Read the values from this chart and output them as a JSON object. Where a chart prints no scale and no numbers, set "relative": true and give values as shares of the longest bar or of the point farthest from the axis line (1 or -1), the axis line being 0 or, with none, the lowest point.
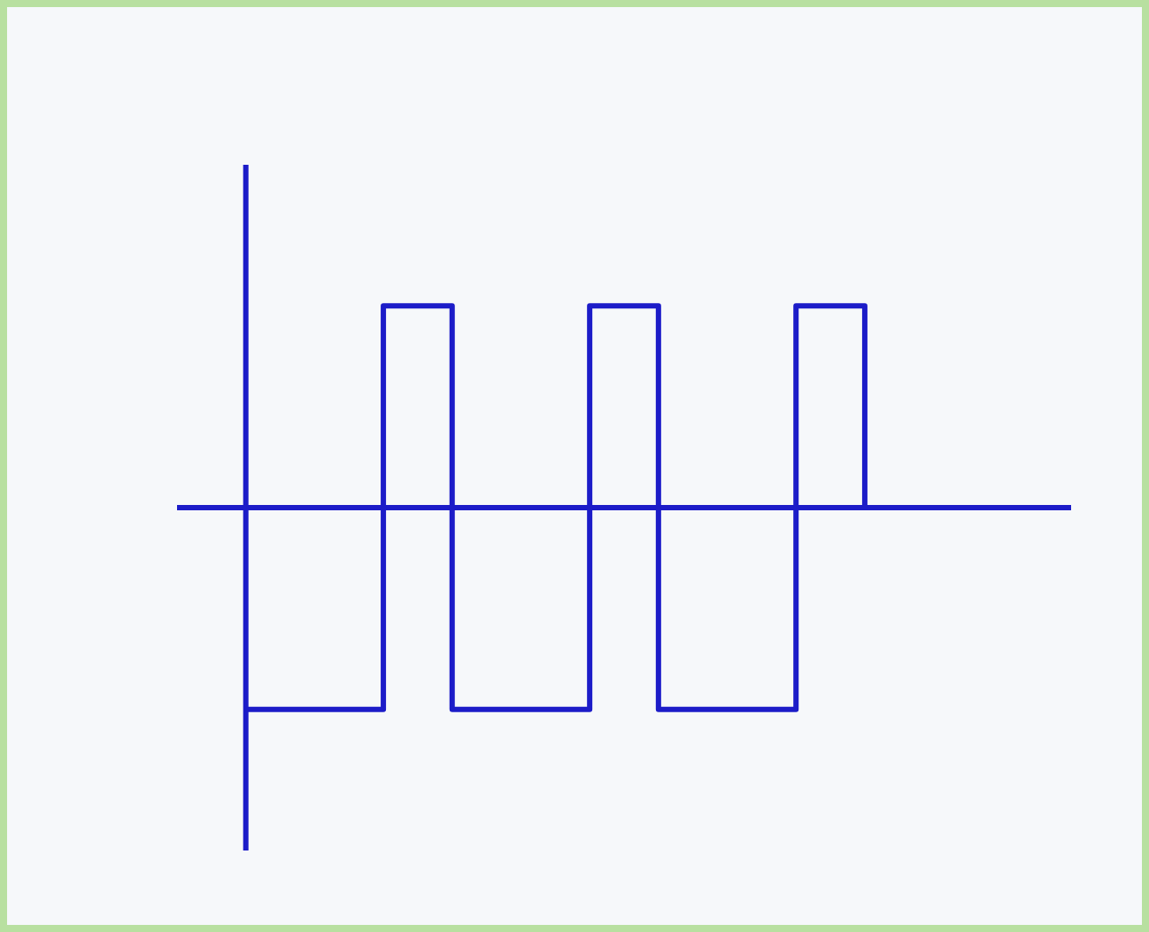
{
  "chart_data": {
    "type": "step",
    "relative": true,
    "categories": [
      null,
      null,
      null,
      null,
      null,
      null,
      null,
      null,
      null,
      null
    ],
    "series": [
      {
        "color": "#1c1cc8",
        "values": [
          -1,
          -1,
          1,
          -1,
          -1,
          1,
          -1,
          -1,
          1,
          0
        ]
      }
    ],
    "ref_lines": [
      {
        "axis": "y",
        "value": 0,
        "color": "#1c1cc8"
      }
    ]
  }
}
